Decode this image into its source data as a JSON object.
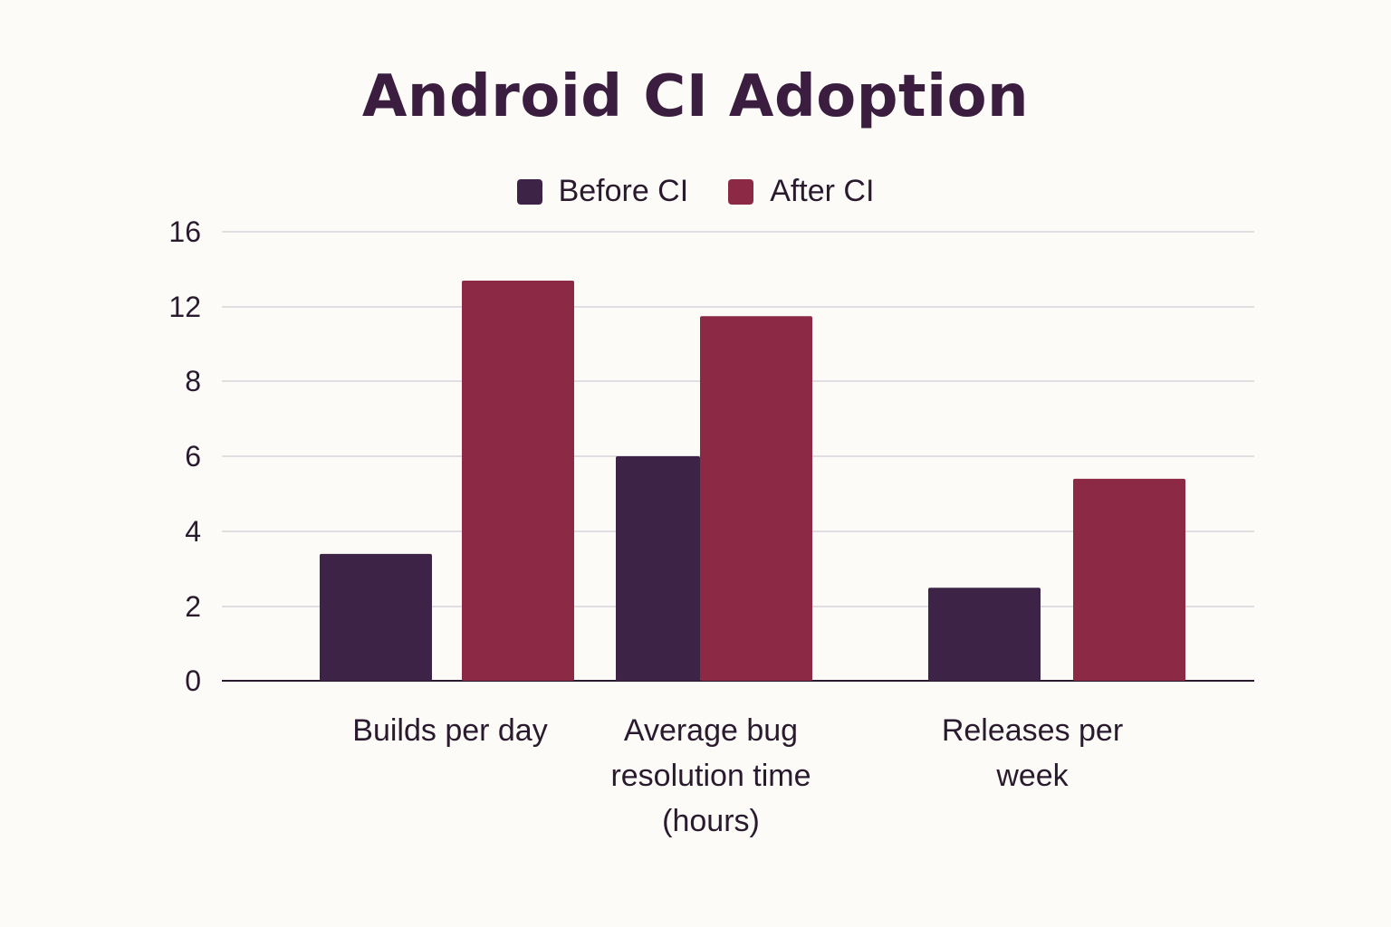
{
  "chart_data": {
    "type": "bar",
    "title": "Android CI Adoption",
    "xlabel": "",
    "ylabel": "",
    "ytick_labels": [
      "0",
      "2",
      "4",
      "6",
      "8",
      "12",
      "16"
    ],
    "categories": [
      [
        "Builds per day"
      ],
      [
        "Average bug",
        "resolution time",
        "(hours)"
      ],
      [
        "Releases per",
        "week"
      ]
    ],
    "series": [
      {
        "name": "Before CI",
        "color": "#3d2447",
        "values": [
          3.4,
          6.0,
          2.5
        ]
      },
      {
        "name": "After CI",
        "color": "#8c2a45",
        "values": [
          13.4,
          11.5,
          5.4
        ]
      }
    ],
    "legend_position": "top-center",
    "grid": true
  }
}
